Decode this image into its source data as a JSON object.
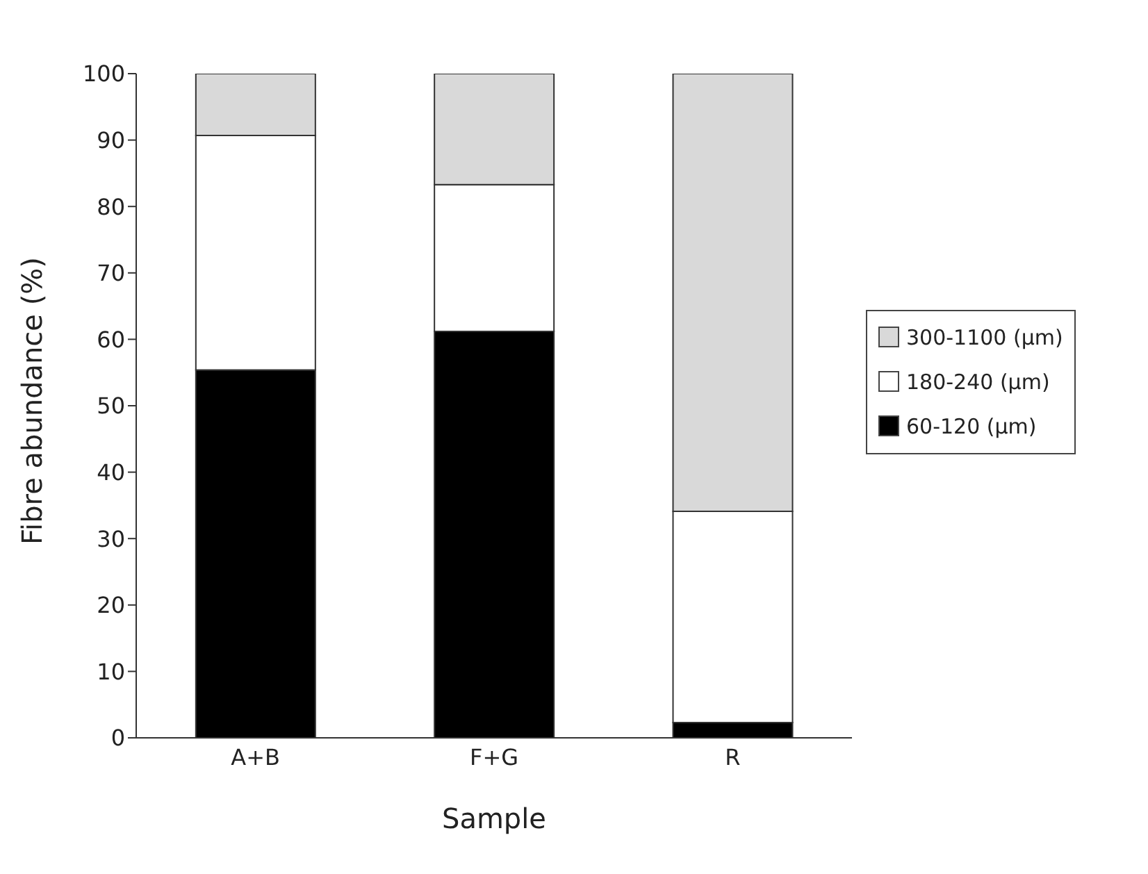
{
  "chart_data": {
    "type": "bar",
    "stacked": true,
    "xlabel": "Sample",
    "ylabel": "Fibre abundance (%)",
    "categories": [
      "A+B",
      "F+G",
      "R"
    ],
    "series": [
      {
        "name": "60-120 (µm)",
        "color": "#000000",
        "values": [
          55.4,
          61.2,
          2.3
        ]
      },
      {
        "name": "180-240 (µm)",
        "color": "#ffffff",
        "values": [
          35.3,
          22.1,
          31.8
        ]
      },
      {
        "name": "300-1100 (µm)",
        "color": "#d9d9d9",
        "values": [
          9.3,
          16.7,
          65.9
        ]
      }
    ],
    "ylim": [
      0,
      100
    ],
    "yticks": [
      0,
      10,
      20,
      30,
      40,
      50,
      60,
      70,
      80,
      90,
      100
    ],
    "grid": false,
    "legend": "right"
  }
}
